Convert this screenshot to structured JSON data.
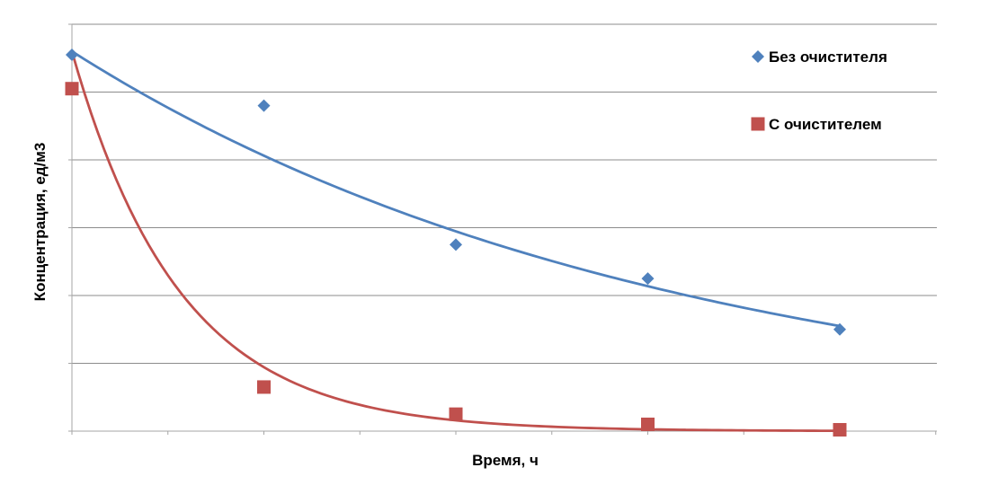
{
  "chart_data": {
    "type": "scatter",
    "title": "",
    "xlabel": "Время, ч",
    "ylabel": "Концентрация, ед/м3",
    "xlim": [
      0,
      4.5
    ],
    "ylim": [
      0,
      6
    ],
    "grid": true,
    "legend_position": "top-right",
    "series": [
      {
        "name": "Без очистителя",
        "marker": "diamond",
        "color": "#4F81BD",
        "x": [
          0,
          1,
          2,
          3,
          4
        ],
        "y": [
          5.55,
          4.8,
          2.75,
          2.25,
          1.5
        ],
        "trendline": {
          "type": "exponential",
          "x": [
            0,
            4
          ],
          "y": [
            5.6,
            1.55
          ]
        }
      },
      {
        "name": "С очистителем",
        "marker": "square",
        "color": "#C0504D",
        "x": [
          0,
          1,
          2,
          3,
          4
        ],
        "y": [
          5.05,
          0.65,
          0.25,
          0.1,
          0.02
        ],
        "trendline": {
          "type": "exponential",
          "x": [
            0,
            4
          ],
          "y": [
            5.6,
            0.0045
          ]
        }
      }
    ]
  }
}
